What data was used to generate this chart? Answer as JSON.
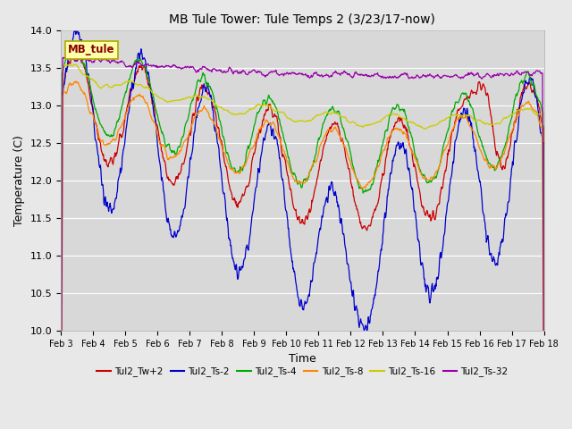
{
  "title": "MB Tule Tower: Tule Temps 2 (3/23/17-now)",
  "xlabel": "Time",
  "ylabel": "Temperature (C)",
  "ylim": [
    10.0,
    14.0
  ],
  "yticks": [
    10.0,
    10.5,
    11.0,
    11.5,
    12.0,
    12.5,
    13.0,
    13.5,
    14.0
  ],
  "xtick_labels": [
    "Feb 3",
    "Feb 4",
    "Feb 5",
    "Feb 6",
    "Feb 7",
    "Feb 8",
    "Feb 9",
    "Feb 10",
    "Feb 11",
    "Feb 12",
    "Feb 13",
    "Feb 14",
    "Feb 15",
    "Feb 16",
    "Feb 17",
    "Feb 18"
  ],
  "legend_entries": [
    "Tul2_Tw+2",
    "Tul2_Ts-2",
    "Tul2_Ts-4",
    "Tul2_Ts-8",
    "Tul2_Ts-16",
    "Tul2_Ts-32"
  ],
  "line_colors": [
    "#cc0000",
    "#0000cc",
    "#00aa00",
    "#ff8800",
    "#cccc00",
    "#9900aa"
  ],
  "label_box_text": "MB_tule",
  "label_box_bg": "#ffffaa",
  "label_box_border": "#aaaa00",
  "label_box_text_color": "#880000",
  "fig_bg": "#e8e8e8",
  "plot_bg": "#d8d8d8"
}
